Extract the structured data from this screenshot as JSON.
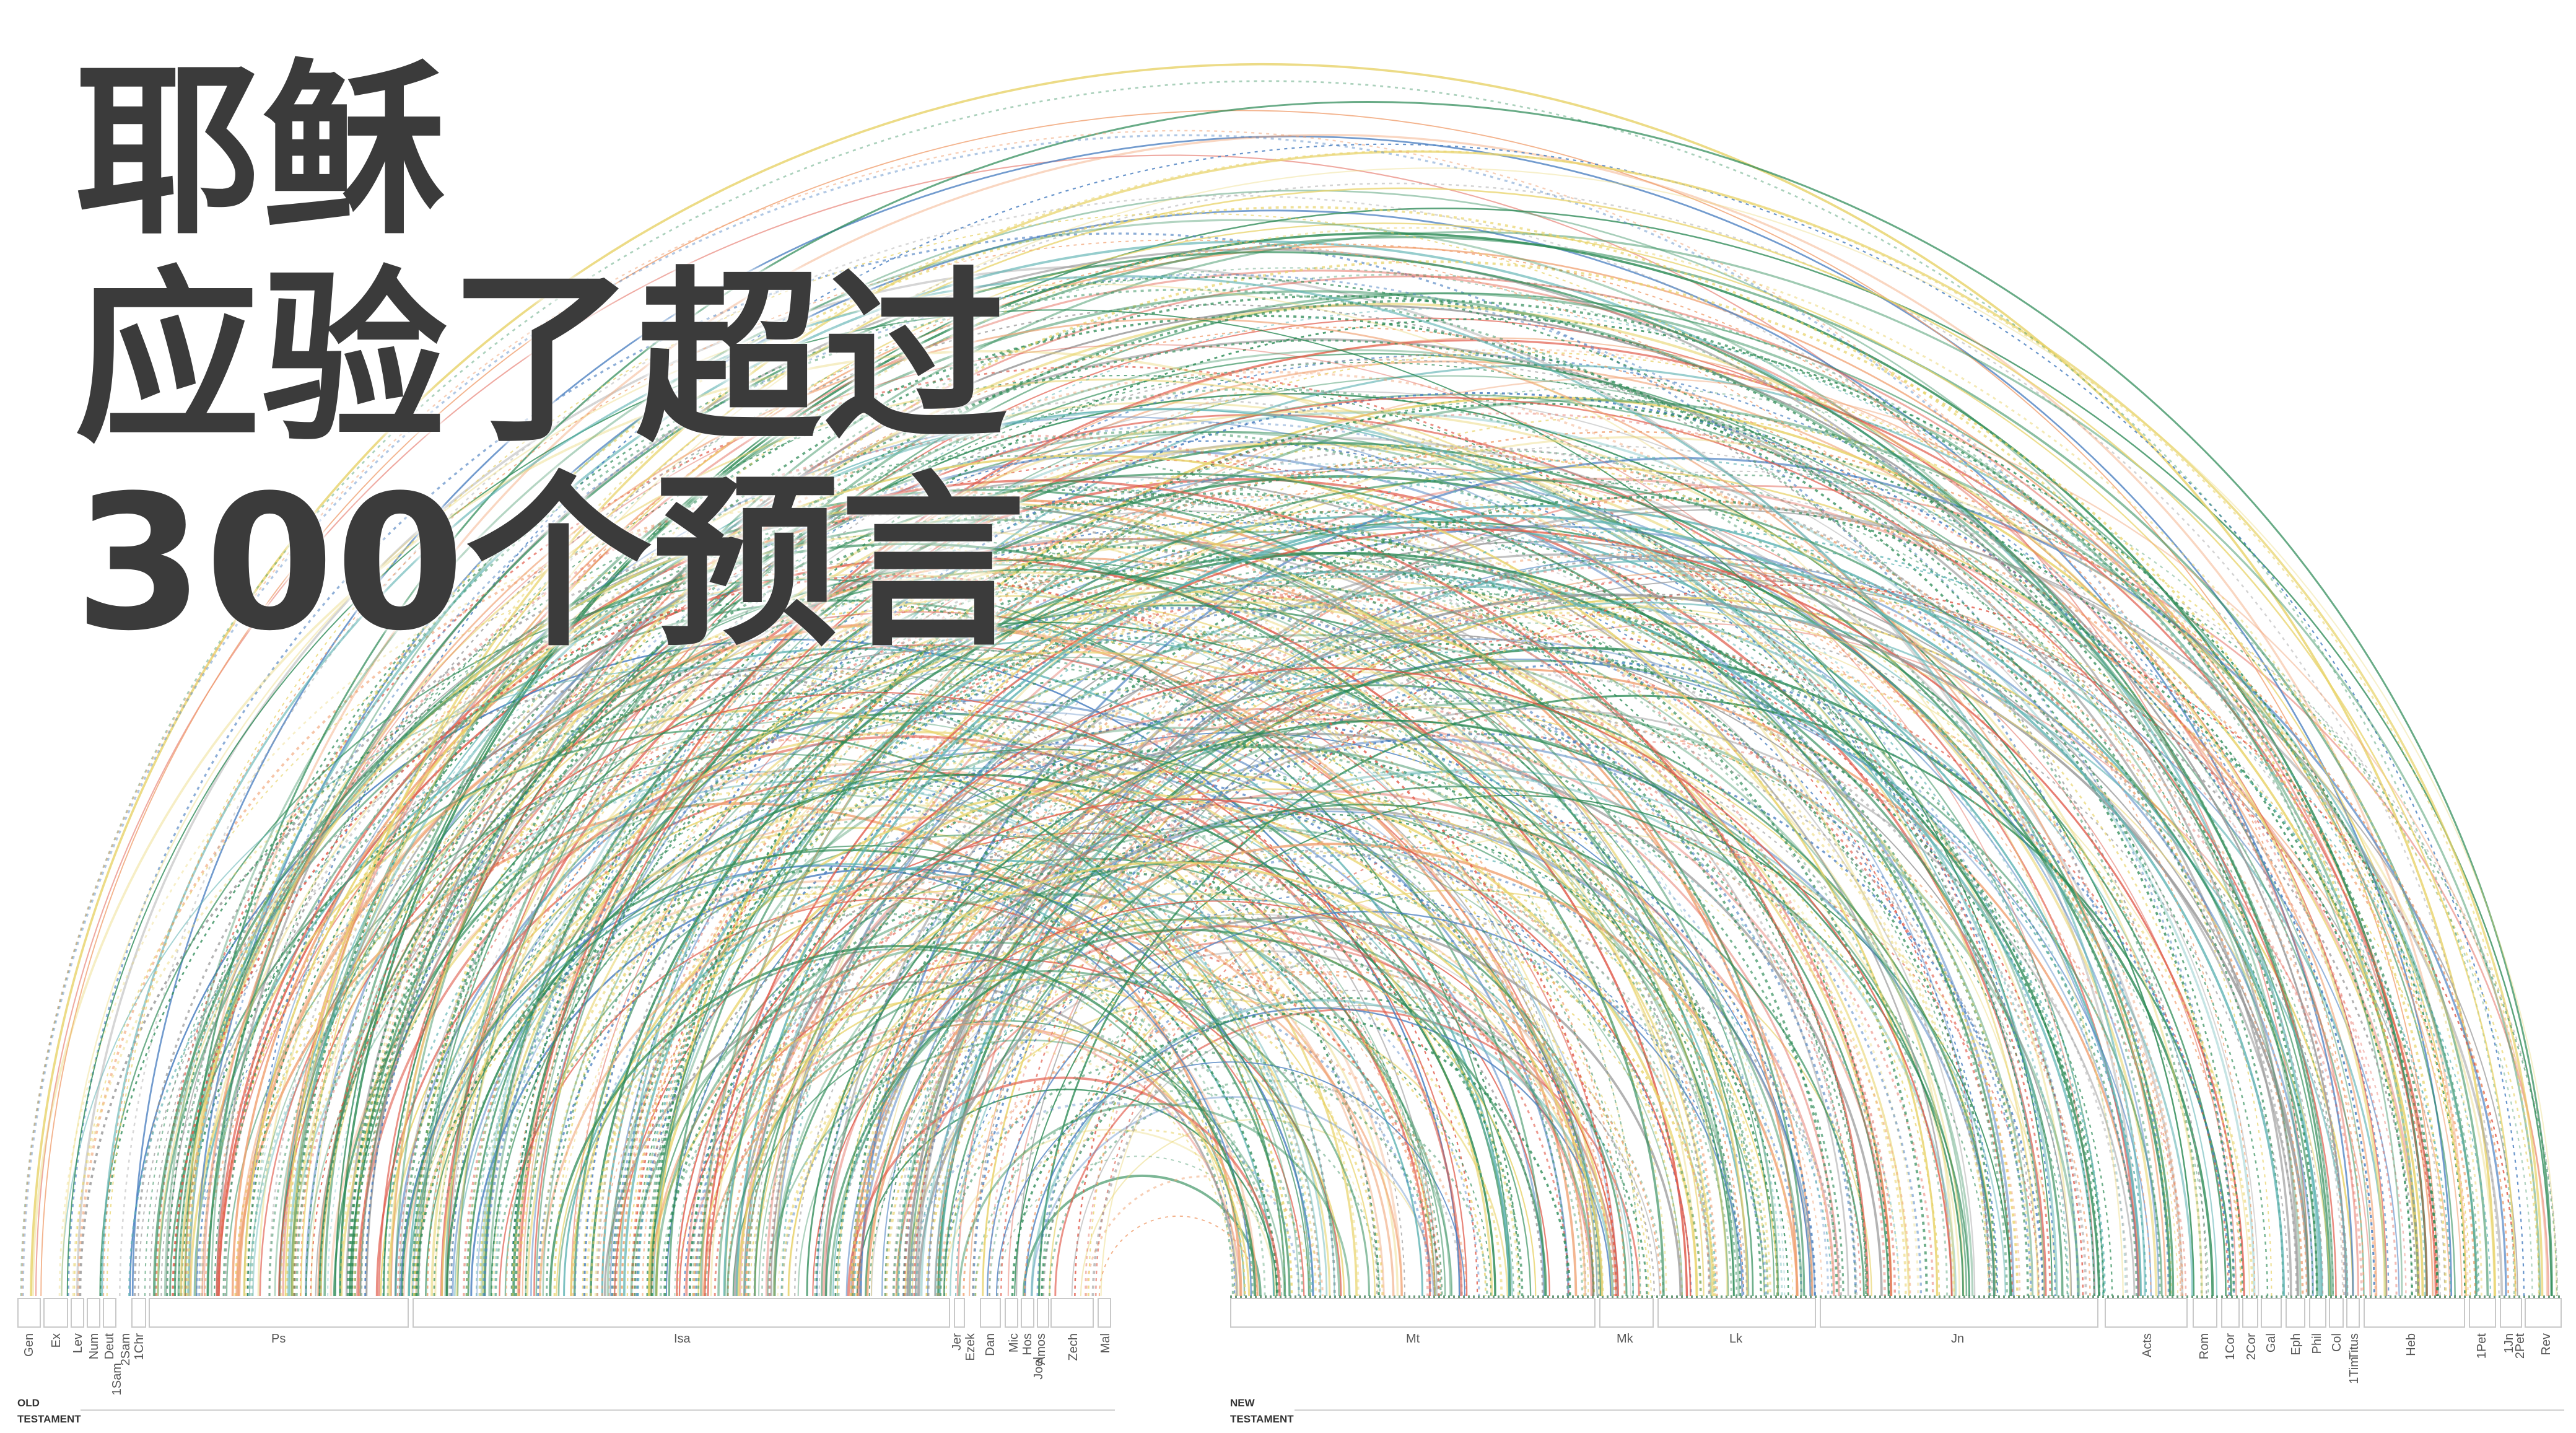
{
  "title": {
    "line1": "耶稣",
    "line2": "应验了超过",
    "line3": "300个预言"
  },
  "testaments": {
    "old": {
      "line1": "OLD",
      "line2": "TESTAMENT"
    },
    "new": {
      "line1": "NEW",
      "line2": "TESTAMENT"
    }
  },
  "old_books": [
    "Gen",
    "Ex",
    "Lev",
    "Num",
    "Deut",
    "2Sam",
    "1Sam",
    "1Chr",
    "Ps",
    "Isa",
    "Jer",
    "Ezek",
    "Dan",
    "Mic",
    "Hos",
    "Joel",
    "Amos",
    "Zech",
    "Mal"
  ],
  "new_books": [
    "Mt",
    "Mk",
    "Lk",
    "Jn",
    "Acts",
    "Rom",
    "1Cor",
    "2Cor",
    "Gal",
    "Eph",
    "Phil",
    "Col",
    "1Tim",
    "Titus",
    "Heb",
    "1Pet",
    "1Jn",
    "2Pet",
    "Rev"
  ],
  "colors": {
    "green": "#2e8b57",
    "teal": "#5fb3b3",
    "yellow": "#e8d36a",
    "orange": "#f0a070",
    "red": "#e05a4a",
    "blue": "#4a7fc0",
    "gray": "#9a9a9a",
    "title": "#3b3b3b"
  },
  "chart_data": {
    "type": "arc-diagram",
    "description_of_links": "prophecies linking Old Testament books to New Testament books"
  }
}
